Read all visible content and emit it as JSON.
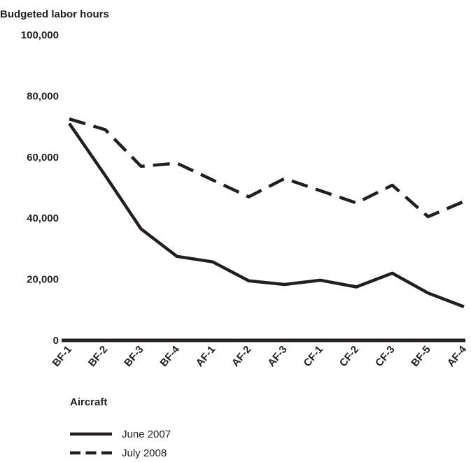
{
  "chart_data": {
    "type": "line",
    "ylabel": "Budgeted labor hours",
    "xlabel": "Aircraft",
    "ylim": [
      0,
      100000
    ],
    "yticks": [
      0,
      20000,
      40000,
      60000,
      80000,
      100000
    ],
    "ytick_labels": [
      "0",
      "20,000",
      "40,000",
      "60,000",
      "80,000",
      "100,000"
    ],
    "categories": [
      "BF-1",
      "BF-2",
      "BF-3",
      "BF-4",
      "AF-1",
      "AF-2",
      "AF-3",
      "CF-1",
      "CF-2",
      "CF-3",
      "BF-5",
      "AF-4"
    ],
    "series": [
      {
        "name": "June 2007",
        "style": "solid",
        "color": "#231f20",
        "values": [
          71000,
          54000,
          36500,
          27500,
          25700,
          19500,
          18300,
          19700,
          17500,
          22000,
          15500,
          11000
        ]
      },
      {
        "name": "July 2008",
        "style": "dashed",
        "color": "#231f20",
        "values": [
          72500,
          69000,
          57000,
          58000,
          52500,
          47000,
          53000,
          49000,
          45000,
          50800,
          40500,
          45500
        ]
      }
    ],
    "grid": false,
    "legend_position": "bottom-left"
  }
}
